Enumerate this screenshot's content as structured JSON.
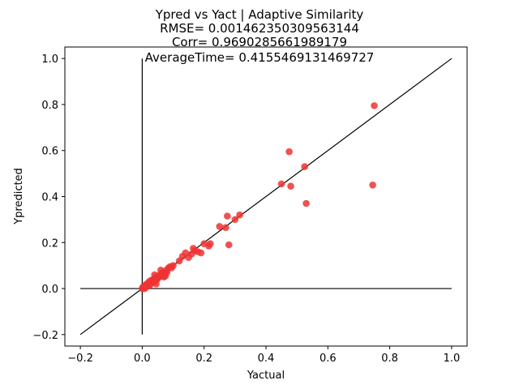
{
  "chart_data": {
    "type": "scatter",
    "title_lines": [
      "Ypred vs Yact | Adaptive Similarity",
      "RMSE= 0.001462350309563144",
      "Corr= 0.9690285661989179",
      "AverageTime= 0.4155469131469727"
    ],
    "xlabel": "Yactual",
    "ylabel": "Ypredicted",
    "xlim": [
      -0.25,
      1.05
    ],
    "ylim": [
      -0.25,
      1.05
    ],
    "xticks": [
      -0.2,
      0.0,
      0.2,
      0.4,
      0.6,
      0.8,
      1.0
    ],
    "yticks": [
      -0.2,
      0.0,
      0.2,
      0.4,
      0.6,
      0.8,
      1.0
    ],
    "xtick_labels": [
      "−0.2",
      "0.0",
      "0.2",
      "0.4",
      "0.6",
      "0.8",
      "1.0"
    ],
    "ytick_labels": [
      "−0.2",
      "0.0",
      "0.2",
      "0.4",
      "0.6",
      "0.8",
      "1.0"
    ],
    "grid": false,
    "point_color": "#ee3333",
    "reference_lines": [
      {
        "type": "identity",
        "from": [
          -0.2,
          -0.2
        ],
        "to": [
          1.0,
          1.0
        ]
      },
      {
        "type": "horizontal",
        "y": 0.0,
        "from_x": -0.2,
        "to_x": 1.0
      },
      {
        "type": "vertical",
        "x": 0.0,
        "from_y": -0.2,
        "to_y": 1.0
      }
    ],
    "points": [
      [
        0.0,
        0.0
      ],
      [
        0.002,
        0.005
      ],
      [
        0.005,
        0.01
      ],
      [
        0.008,
        0.0
      ],
      [
        0.01,
        0.015
      ],
      [
        0.012,
        0.005
      ],
      [
        0.015,
        0.02
      ],
      [
        0.018,
        0.01
      ],
      [
        0.02,
        0.02
      ],
      [
        0.022,
        0.03
      ],
      [
        0.025,
        0.015
      ],
      [
        0.028,
        0.035
      ],
      [
        0.03,
        0.025
      ],
      [
        0.033,
        0.03
      ],
      [
        0.035,
        0.04
      ],
      [
        0.038,
        0.035
      ],
      [
        0.04,
        0.03
      ],
      [
        0.043,
        0.045
      ],
      [
        0.045,
        0.05
      ],
      [
        0.048,
        0.04
      ],
      [
        0.05,
        0.045
      ],
      [
        0.053,
        0.055
      ],
      [
        0.055,
        0.05
      ],
      [
        0.058,
        0.06
      ],
      [
        0.06,
        0.055
      ],
      [
        0.063,
        0.065
      ],
      [
        0.065,
        0.06
      ],
      [
        0.068,
        0.07
      ],
      [
        0.07,
        0.05
      ],
      [
        0.073,
        0.065
      ],
      [
        0.075,
        0.055
      ],
      [
        0.078,
        0.08
      ],
      [
        0.08,
        0.07
      ],
      [
        0.085,
        0.09
      ],
      [
        0.09,
        0.095
      ],
      [
        0.095,
        0.09
      ],
      [
        0.1,
        0.1
      ],
      [
        0.04,
        0.06
      ],
      [
        0.06,
        0.08
      ],
      [
        0.045,
        0.02
      ],
      [
        0.12,
        0.12
      ],
      [
        0.13,
        0.14
      ],
      [
        0.14,
        0.155
      ],
      [
        0.15,
        0.135
      ],
      [
        0.16,
        0.15
      ],
      [
        0.165,
        0.175
      ],
      [
        0.17,
        0.165
      ],
      [
        0.18,
        0.16
      ],
      [
        0.19,
        0.155
      ],
      [
        0.2,
        0.195
      ],
      [
        0.215,
        0.185
      ],
      [
        0.22,
        0.195
      ],
      [
        0.25,
        0.27
      ],
      [
        0.27,
        0.265
      ],
      [
        0.275,
        0.315
      ],
      [
        0.28,
        0.19
      ],
      [
        0.3,
        0.3
      ],
      [
        0.315,
        0.32
      ],
      [
        0.45,
        0.455
      ],
      [
        0.475,
        0.595
      ],
      [
        0.48,
        0.445
      ],
      [
        0.525,
        0.53
      ],
      [
        0.53,
        0.37
      ],
      [
        0.745,
        0.45
      ],
      [
        0.75,
        0.795
      ]
    ]
  }
}
